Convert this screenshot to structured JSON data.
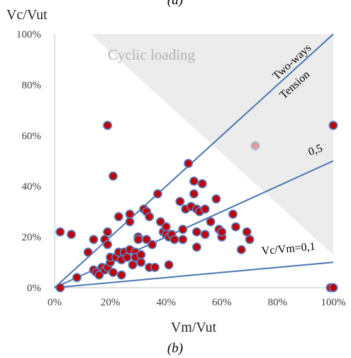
{
  "top_fragment": "(a)",
  "panel_label": "(b)",
  "chart_data": {
    "type": "scatter",
    "title": "",
    "ylabel": "Vc/Vut",
    "xlabel": "Vm/Vut",
    "xlim": [
      0,
      1
    ],
    "ylim": [
      0,
      1
    ],
    "x_ticks": [
      "0%",
      "20%",
      "40%",
      "60%",
      "80%",
      "100%"
    ],
    "y_ticks": [
      "0%",
      "20%",
      "40%",
      "60%",
      "80%",
      "100%"
    ],
    "grid": false,
    "shaded_region_label": "Cyclic loading",
    "reference_lines": [
      {
        "label": "Two-ways",
        "label2": "Tension",
        "ratio": 1.0
      },
      {
        "label": "0,5",
        "ratio": 0.5
      },
      {
        "label": "Vc/Vm=0,1",
        "ratio": 0.1
      }
    ],
    "colors": {
      "marker_fill": "#c00000",
      "marker_edge": "#5b7fbf",
      "line": "#4a76b0",
      "shade": "#ececec",
      "faded_marker": "#e59a9a"
    },
    "points": [
      [
        0.02,
        0.0
      ],
      [
        0.02,
        0.22
      ],
      [
        0.06,
        0.21
      ],
      [
        0.08,
        0.04
      ],
      [
        0.12,
        0.14
      ],
      [
        0.14,
        0.19
      ],
      [
        0.14,
        0.07
      ],
      [
        0.15,
        0.06
      ],
      [
        0.16,
        0.05
      ],
      [
        0.17,
        0.08
      ],
      [
        0.18,
        0.19
      ],
      [
        0.18,
        0.07
      ],
      [
        0.19,
        0.22
      ],
      [
        0.19,
        0.17
      ],
      [
        0.19,
        0.64
      ],
      [
        0.19,
        0.08
      ],
      [
        0.2,
        0.1
      ],
      [
        0.2,
        0.12
      ],
      [
        0.21,
        0.44
      ],
      [
        0.21,
        0.06
      ],
      [
        0.22,
        0.12
      ],
      [
        0.23,
        0.14
      ],
      [
        0.23,
        0.28
      ],
      [
        0.24,
        0.11
      ],
      [
        0.24,
        0.05
      ],
      [
        0.25,
        0.14
      ],
      [
        0.26,
        0.12
      ],
      [
        0.27,
        0.26
      ],
      [
        0.27,
        0.15
      ],
      [
        0.27,
        0.29
      ],
      [
        0.28,
        0.09
      ],
      [
        0.29,
        0.14
      ],
      [
        0.29,
        0.12
      ],
      [
        0.3,
        0.2
      ],
      [
        0.3,
        0.19
      ],
      [
        0.31,
        0.13
      ],
      [
        0.31,
        0.1
      ],
      [
        0.32,
        0.31
      ],
      [
        0.33,
        0.19
      ],
      [
        0.33,
        0.3
      ],
      [
        0.34,
        0.08
      ],
      [
        0.34,
        0.28
      ],
      [
        0.35,
        0.17
      ],
      [
        0.36,
        0.08
      ],
      [
        0.37,
        0.37
      ],
      [
        0.38,
        0.26
      ],
      [
        0.39,
        0.22
      ],
      [
        0.4,
        0.24
      ],
      [
        0.4,
        0.21
      ],
      [
        0.41,
        0.2
      ],
      [
        0.41,
        0.09
      ],
      [
        0.42,
        0.21
      ],
      [
        0.43,
        0.19
      ],
      [
        0.45,
        0.34
      ],
      [
        0.46,
        0.23
      ],
      [
        0.46,
        0.19
      ],
      [
        0.47,
        0.31
      ],
      [
        0.48,
        0.49
      ],
      [
        0.49,
        0.32
      ],
      [
        0.5,
        0.37
      ],
      [
        0.5,
        0.42
      ],
      [
        0.51,
        0.31
      ],
      [
        0.51,
        0.16
      ],
      [
        0.51,
        0.22
      ],
      [
        0.52,
        0.3
      ],
      [
        0.53,
        0.41
      ],
      [
        0.54,
        0.21
      ],
      [
        0.54,
        0.31
      ],
      [
        0.56,
        0.26
      ],
      [
        0.58,
        0.35
      ],
      [
        0.59,
        0.23
      ],
      [
        0.6,
        0.2
      ],
      [
        0.6,
        0.22
      ],
      [
        0.64,
        0.29
      ],
      [
        0.65,
        0.24
      ],
      [
        0.67,
        0.15
      ],
      [
        0.69,
        0.22
      ],
      [
        0.7,
        0.19
      ],
      [
        0.99,
        0.0
      ],
      [
        1.0,
        0.0
      ],
      [
        1.0,
        0.64
      ]
    ],
    "faded_points": [
      [
        0.72,
        0.56
      ]
    ]
  }
}
